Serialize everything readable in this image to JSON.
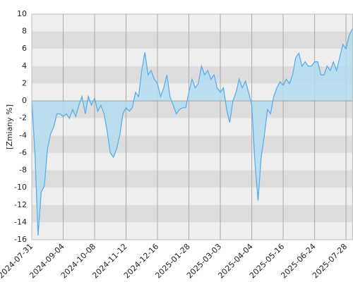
{
  "chart_data": {
    "type": "area",
    "ylabel": "[Zmiany %]",
    "categories": [
      "2024-07-31",
      null,
      null,
      null,
      null,
      null,
      null,
      null,
      null,
      null,
      "2024-09-04",
      null,
      null,
      null,
      null,
      null,
      null,
      null,
      null,
      null,
      "2024-10-08",
      null,
      null,
      null,
      null,
      null,
      null,
      null,
      null,
      null,
      "2024-11-12",
      null,
      null,
      null,
      null,
      null,
      null,
      null,
      null,
      null,
      "2024-12-16",
      null,
      null,
      null,
      null,
      null,
      null,
      null,
      null,
      null,
      "2025-01-28",
      null,
      null,
      null,
      null,
      null,
      null,
      null,
      null,
      null,
      "2025-03-03",
      null,
      null,
      null,
      null,
      null,
      null,
      null,
      null,
      null,
      "2025-04-04",
      null,
      null,
      null,
      null,
      null,
      null,
      null,
      null,
      null,
      "2025-05-16",
      null,
      null,
      null,
      null,
      null,
      null,
      null,
      null,
      null,
      "2025-06-24",
      null,
      null,
      null,
      null,
      null,
      null,
      null,
      null,
      null,
      "2025-07-28",
      null,
      null
    ],
    "values": [
      0,
      -6,
      -15.5,
      -10.5,
      -9.8,
      -5.5,
      -3.8,
      -3,
      -1.5,
      -1.5,
      -1.8,
      -1.5,
      -2,
      -1,
      -1.8,
      -0.5,
      0.5,
      -1.5,
      0.5,
      -0.5,
      0.3,
      -1.2,
      -0.5,
      -1.5,
      -3.5,
      -6,
      -6.5,
      -5.5,
      -4,
      -1.5,
      -0.8,
      -1.2,
      -0.8,
      1,
      0.5,
      3.5,
      5.6,
      3,
      3.5,
      2.5,
      2,
      0.5,
      1.5,
      3,
      0.5,
      -0.5,
      -1.5,
      -1,
      -0.8,
      -0.8,
      1,
      2.5,
      1.5,
      2,
      4,
      3,
      3.5,
      2.5,
      3,
      1.5,
      1,
      1.5,
      -1,
      -2.5,
      0,
      1,
      2.5,
      1.5,
      2.3,
      1,
      -0.5,
      -7,
      -11.5,
      -6.5,
      -4,
      -1,
      -1.5,
      0.5,
      1.5,
      2.2,
      1.8,
      2.5,
      2,
      3,
      5,
      5.5,
      4,
      4.5,
      4,
      4,
      4.5,
      4.5,
      3,
      3,
      4,
      3.5,
      4.5,
      3.5,
      5,
      6.5,
      6,
      7.5,
      8.3
    ],
    "line_color": "#5aaeea",
    "fill_color": "#b3dcef",
    "ylim": [
      -16,
      10
    ],
    "yticks": [
      -16,
      -14,
      -12,
      -10,
      -8,
      -6,
      -4,
      -2,
      0,
      2,
      4,
      6,
      8,
      10
    ],
    "band_colors": [
      "#eeeeee",
      "#dddddd"
    ],
    "grid": true
  }
}
